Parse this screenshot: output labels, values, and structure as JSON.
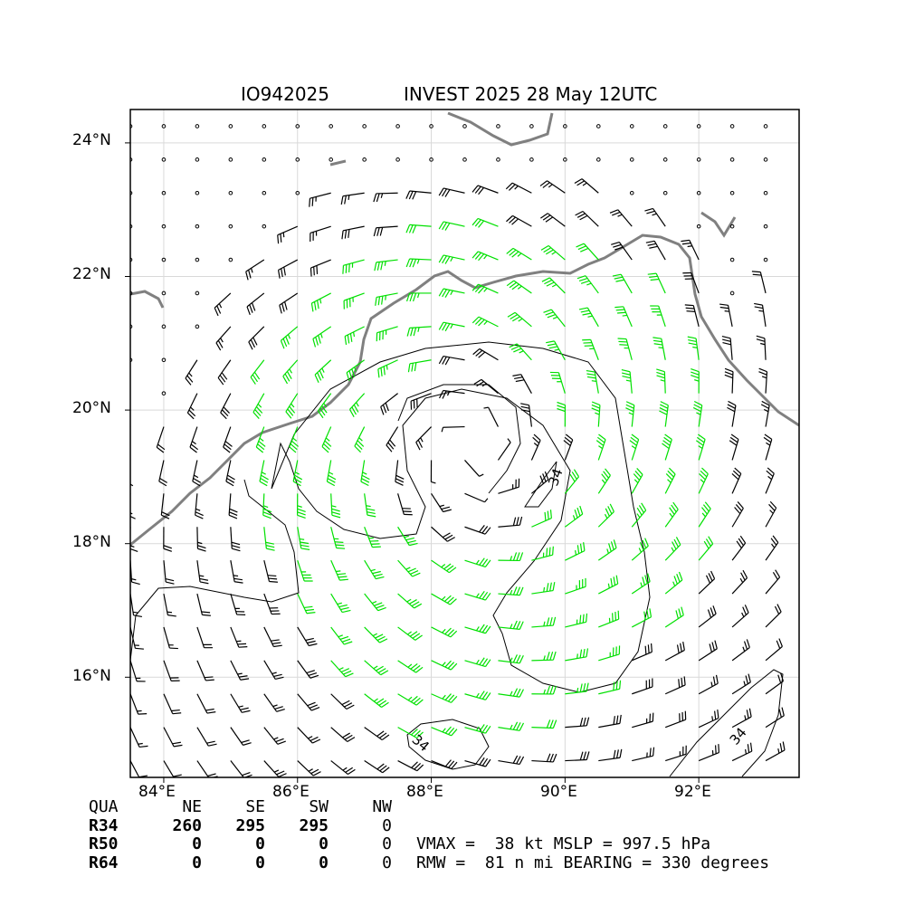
{
  "header": {
    "storm_id": "IO942025",
    "title": "INVEST 2025 28 May 12UTC"
  },
  "axes": {
    "lat_labels": [
      "24°N",
      "22°N",
      "20°N",
      "18°N",
      "16°N"
    ],
    "lon_labels": [
      "84°E",
      "86°E",
      "88°E",
      "90°E",
      "92°E"
    ],
    "lon_range": [
      83.5,
      93.5
    ],
    "lat_range": [
      14.5,
      24.5
    ],
    "grid": true
  },
  "map": {
    "center_lon": 88.6,
    "center_lat": 19.4,
    "contour_label": "34",
    "colors": {
      "light_wind": "#000000",
      "gale_34kt": "#00e000",
      "storm_50kt": "#e6b400",
      "coastline": "#808080",
      "grid": "#d9d9d9"
    }
  },
  "wind_radii": {
    "headers": [
      "QUA",
      "NE",
      "SE",
      "SW",
      "NW"
    ],
    "rows": [
      {
        "label": "R34",
        "values": [
          "260",
          "295",
          "295",
          "0"
        ]
      },
      {
        "label": "R50",
        "values": [
          "0",
          "0",
          "0",
          "0"
        ]
      },
      {
        "label": "R64",
        "values": [
          "0",
          "0",
          "0",
          "0"
        ]
      }
    ]
  },
  "summary": {
    "line1": "VMAX =  38 kt MSLP = 997.5 hPa",
    "line2": "RMW =  81 n mi BEARING = 330 degrees"
  }
}
